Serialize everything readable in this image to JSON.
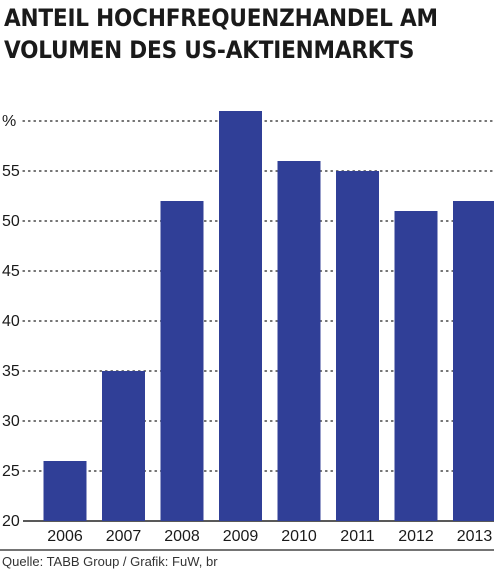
{
  "title_lines": [
    "ANTEIL HOCHFREQUENZHANDEL AM",
    "VOLUMEN DES US-AKTIENMARKTS"
  ],
  "source": "Quelle: TABB Group / Grafik: FuW, br",
  "chart_data": {
    "type": "bar",
    "categories": [
      "2006",
      "2007",
      "2008",
      "2009",
      "2010",
      "2011",
      "2012",
      "2013"
    ],
    "values": [
      26,
      35,
      52,
      61,
      56,
      55,
      51,
      52
    ],
    "ylim": [
      20,
      60
    ],
    "ytick_labels": [
      "20",
      "25",
      "30",
      "35",
      "40",
      "45",
      "50",
      "55",
      "%"
    ],
    "grid": true,
    "bar_color": "#303f97"
  }
}
